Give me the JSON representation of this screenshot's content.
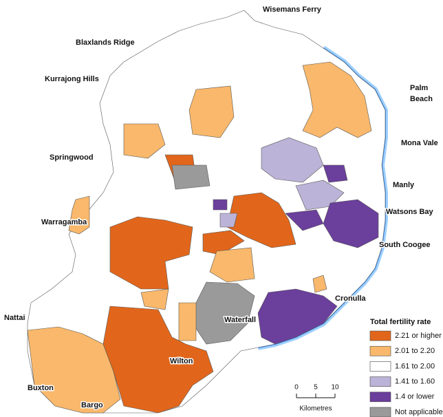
{
  "places": [
    {
      "label": "Wisemans Ferry"
    },
    {
      "label": "Blaxlands Ridge"
    },
    {
      "label": "Kurrajong Hills"
    },
    {
      "lines": [
        "Palm",
        "Beach"
      ]
    },
    {
      "label": "Mona Vale"
    },
    {
      "label": "Springwood"
    },
    {
      "label": "Manly"
    },
    {
      "label": "Watsons Bay"
    },
    {
      "label": "Warragamba"
    },
    {
      "label": "South Coogee"
    },
    {
      "label": "Cronulla"
    },
    {
      "label": "Nattai"
    },
    {
      "label": "Waterfall"
    },
    {
      "label": "Wilton"
    },
    {
      "label": "Buxton"
    },
    {
      "label": "Bargo"
    }
  ],
  "legend": {
    "title": "Total fertility rate",
    "items": [
      {
        "label": "2.21 or higher",
        "color": "#e1661b"
      },
      {
        "label": "2.01 to 2.20",
        "color": "#f9b86b"
      },
      {
        "label": "1.61 to 2.00",
        "color": "#ffffff"
      },
      {
        "label": "1.41 to 1.60",
        "color": "#bcb3d8"
      },
      {
        "label": "1.4 or lower",
        "color": "#6b3f9c"
      },
      {
        "label": "Not applicable",
        "color": "#9a9a9a"
      }
    ]
  },
  "scale_bar": {
    "ticks": [
      0,
      5,
      10
    ],
    "unit": "Kilometres"
  }
}
